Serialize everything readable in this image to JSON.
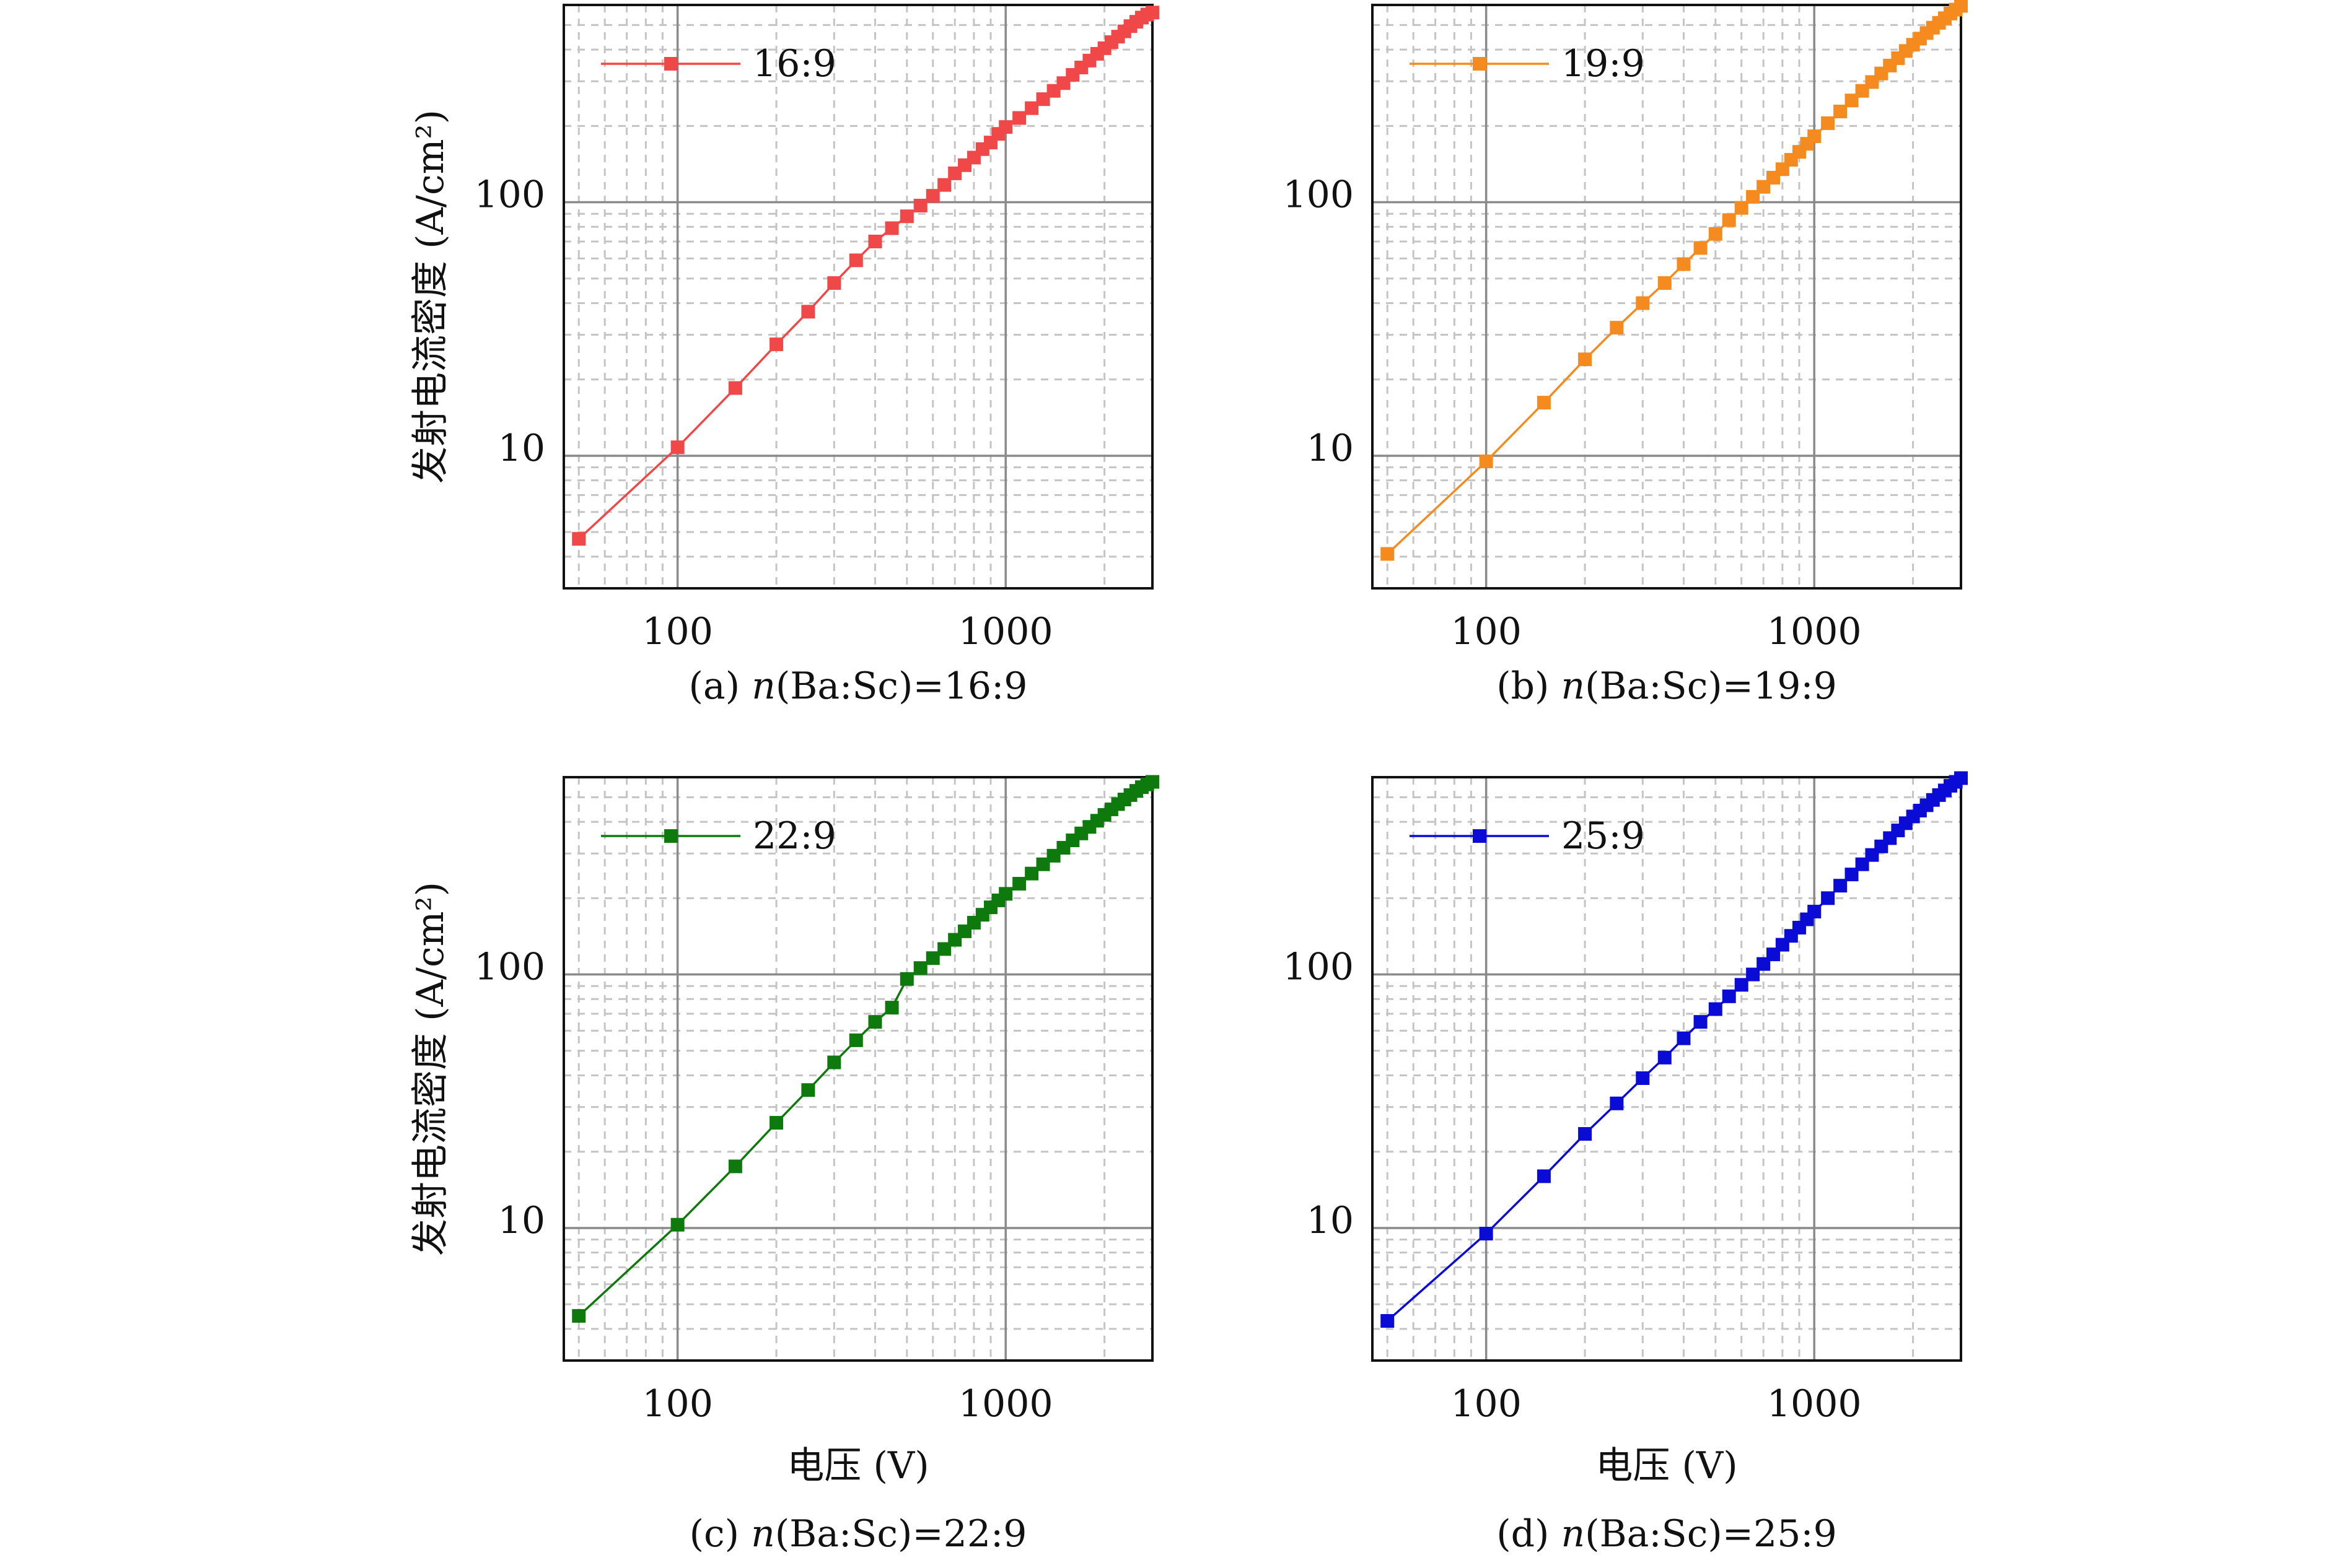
{
  "chart_data": [
    {
      "type": "line",
      "caption_prefix": "(a) ",
      "caption_var": "n",
      "caption_rest": "(Ba:Sc)=16:9",
      "xlabel": "",
      "ylabel": "发射电流密度 (A/cm²)",
      "xscale": "log",
      "yscale": "log",
      "xlim": [
        45,
        2800
      ],
      "ylim": [
        3,
        600
      ],
      "xticks": [
        "100",
        "1000"
      ],
      "yticks": [
        "10",
        "100"
      ],
      "grid": true,
      "legend_position": "top-left",
      "color": "#f04848",
      "series": [
        {
          "name": "16:9",
          "x": [
            50,
            100,
            150,
            200,
            250,
            300,
            350,
            400,
            450,
            500,
            550,
            600,
            650,
            700,
            750,
            800,
            850,
            900,
            950,
            1000,
            1100,
            1200,
            1300,
            1400,
            1500,
            1600,
            1700,
            1800,
            1900,
            2000,
            2100,
            2200,
            2300,
            2400,
            2500,
            2600,
            2700,
            2800
          ],
          "y": [
            4.7,
            10.8,
            18.5,
            27.5,
            37,
            48,
            59,
            70,
            79,
            88,
            97,
            106,
            117,
            130,
            140,
            150,
            162,
            172,
            186,
            198,
            215,
            235,
            255,
            275,
            295,
            318,
            340,
            362,
            385,
            405,
            428,
            450,
            472,
            495,
            515,
            535,
            550,
            560
          ]
        }
      ]
    },
    {
      "type": "line",
      "caption_prefix": "(b) ",
      "caption_var": "n",
      "caption_rest": "(Ba:Sc)=19:9",
      "xlabel": "",
      "ylabel": "",
      "xscale": "log",
      "yscale": "log",
      "xlim": [
        45,
        2800
      ],
      "ylim": [
        3,
        600
      ],
      "xticks": [
        "100",
        "1000"
      ],
      "yticks": [
        "10",
        "100"
      ],
      "grid": true,
      "legend_position": "top-left",
      "color": "#f58a1f",
      "series": [
        {
          "name": "19:9",
          "x": [
            50,
            100,
            150,
            200,
            250,
            300,
            350,
            400,
            450,
            500,
            550,
            600,
            650,
            700,
            750,
            800,
            850,
            900,
            950,
            1000,
            1100,
            1200,
            1300,
            1400,
            1500,
            1600,
            1700,
            1800,
            1900,
            2000,
            2100,
            2200,
            2300,
            2400,
            2500,
            2600,
            2700,
            2800
          ],
          "y": [
            4.1,
            9.5,
            16.2,
            24,
            32,
            40,
            48,
            57,
            66,
            75,
            85,
            95,
            105,
            115,
            125,
            135,
            147,
            158,
            170,
            182,
            205,
            228,
            252,
            275,
            298,
            322,
            346,
            370,
            395,
            418,
            442,
            465,
            488,
            510,
            532,
            555,
            575,
            595
          ]
        }
      ]
    },
    {
      "type": "line",
      "caption_prefix": "(c) ",
      "caption_var": "n",
      "caption_rest": "(Ba:Sc)=22:9",
      "xlabel": "电压 (V)",
      "ylabel": "发射电流密度 (A/cm²)",
      "xscale": "log",
      "yscale": "log",
      "xlim": [
        45,
        2800
      ],
      "ylim": [
        3,
        600
      ],
      "xticks": [
        "100",
        "1000"
      ],
      "yticks": [
        "10",
        "100"
      ],
      "grid": true,
      "legend_position": "top-left",
      "color": "#0e7a0e",
      "series": [
        {
          "name": "22:9",
          "x": [
            50,
            100,
            150,
            200,
            250,
            300,
            350,
            400,
            450,
            500,
            550,
            600,
            650,
            700,
            750,
            800,
            850,
            900,
            950,
            1000,
            1100,
            1200,
            1300,
            1400,
            1500,
            1600,
            1700,
            1800,
            1900,
            2000,
            2100,
            2200,
            2300,
            2400,
            2500,
            2600,
            2700,
            2800
          ],
          "y": [
            4.5,
            10.3,
            17.5,
            26,
            35,
            45,
            55,
            65,
            74,
            96,
            106,
            116,
            126,
            137,
            148,
            160,
            172,
            184,
            196,
            208,
            228,
            250,
            272,
            294,
            316,
            338,
            360,
            382,
            404,
            426,
            448,
            470,
            490,
            510,
            530,
            548,
            562,
            575
          ]
        }
      ]
    },
    {
      "type": "line",
      "caption_prefix": "(d) ",
      "caption_var": "n",
      "caption_rest": "(Ba:Sc)=25:9",
      "xlabel": "电压 (V)",
      "ylabel": "",
      "xscale": "log",
      "yscale": "log",
      "xlim": [
        45,
        2800
      ],
      "ylim": [
        3,
        600
      ],
      "xticks": [
        "100",
        "1000"
      ],
      "yticks": [
        "10",
        "100"
      ],
      "grid": true,
      "legend_position": "top-left",
      "color": "#0b0bd6",
      "series": [
        {
          "name": "25:9",
          "x": [
            50,
            100,
            150,
            200,
            250,
            300,
            350,
            400,
            450,
            500,
            550,
            600,
            650,
            700,
            750,
            800,
            850,
            900,
            950,
            1000,
            1100,
            1200,
            1300,
            1400,
            1500,
            1600,
            1700,
            1800,
            1900,
            2000,
            2100,
            2200,
            2300,
            2400,
            2500,
            2600,
            2700,
            2800
          ],
          "y": [
            4.3,
            9.5,
            16,
            23.5,
            31,
            39,
            47,
            56,
            65,
            73,
            82,
            91,
            100,
            110,
            120,
            131,
            142,
            153,
            165,
            177,
            200,
            224,
            248,
            272,
            296,
            320,
            345,
            370,
            395,
            420,
            443,
            465,
            488,
            510,
            532,
            555,
            575,
            595
          ]
        }
      ]
    }
  ]
}
